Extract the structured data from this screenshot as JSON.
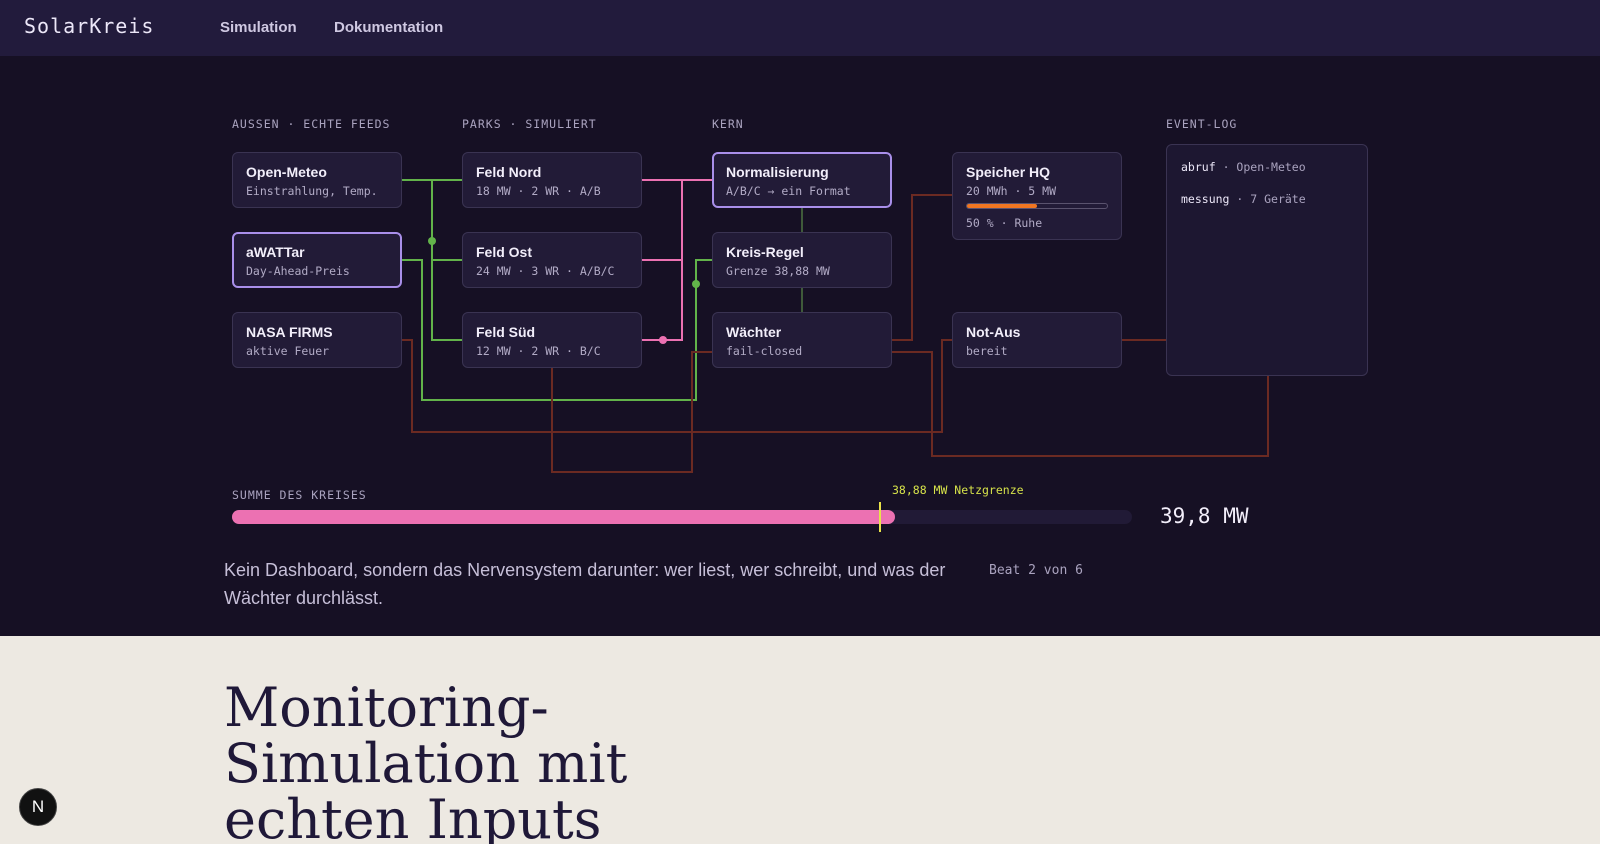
{
  "nav": {
    "brand": "SolarKreis",
    "links": [
      "Simulation",
      "Dokumentation"
    ]
  },
  "columns": {
    "aussen": "AUSSEN · ECHTE FEEDS",
    "parks": "PARKS · SIMULIERT",
    "kern": "KERN",
    "eventlog": "EVENT-LOG"
  },
  "nodes": {
    "open_meteo": {
      "title": "Open-Meteo",
      "sub": "Einstrahlung, Temp."
    },
    "awattar": {
      "title": "aWATTar",
      "sub": "Day-Ahead-Preis"
    },
    "nasa_firms": {
      "title": "NASA FIRMS",
      "sub": "aktive Feuer"
    },
    "feld_nord": {
      "title": "Feld Nord",
      "sub": "18 MW · 2 WR · A/B"
    },
    "feld_ost": {
      "title": "Feld Ost",
      "sub": "24 MW · 3 WR · A/B/C"
    },
    "feld_sued": {
      "title": "Feld Süd",
      "sub": "12 MW · 2 WR · B/C"
    },
    "normalisierung": {
      "title": "Normalisierung",
      "sub": "A/B/C → ein Format"
    },
    "kreis_regel": {
      "title": "Kreis-Regel",
      "sub": "Grenze 38,88 MW"
    },
    "waechter": {
      "title": "Wächter",
      "sub": "fail-closed"
    },
    "speicher": {
      "title": "Speicher HQ",
      "sub": "20 MWh · 5 MW",
      "status": "50 % · Ruhe",
      "charge_fraction": 0.5
    },
    "not_aus": {
      "title": "Not-Aus",
      "sub": "bereit"
    }
  },
  "event_log": [
    {
      "key": "abruf",
      "value": "Open-Meteo"
    },
    {
      "key": "messung",
      "value": "7 Geräte"
    }
  ],
  "summary": {
    "label": "SUMME DES KREISES",
    "limit_label": "38,88 MW Netzgrenze",
    "value": "39,8 MW",
    "scale_max_mw": 54,
    "total_mw": 39.8,
    "limit_mw": 38.88
  },
  "caption": "Kein Dashboard, sondern das Nervensystem darunter: wer liest, wer schreibt, und was der Wächter durchlässt.",
  "beat": "Beat 2 von 6",
  "lower": {
    "title": "Monitoring-Simulation mit echten Inputs"
  },
  "badge": {
    "letter": "N"
  },
  "colors": {
    "feed_wire": "#62b34a",
    "park_wire": "#ec71b2",
    "control_wire": "#6b2a22",
    "core_link": "#3f5a3a",
    "accent": "#a98fea",
    "limit": "#e8e24a",
    "storage": "#f07622"
  }
}
